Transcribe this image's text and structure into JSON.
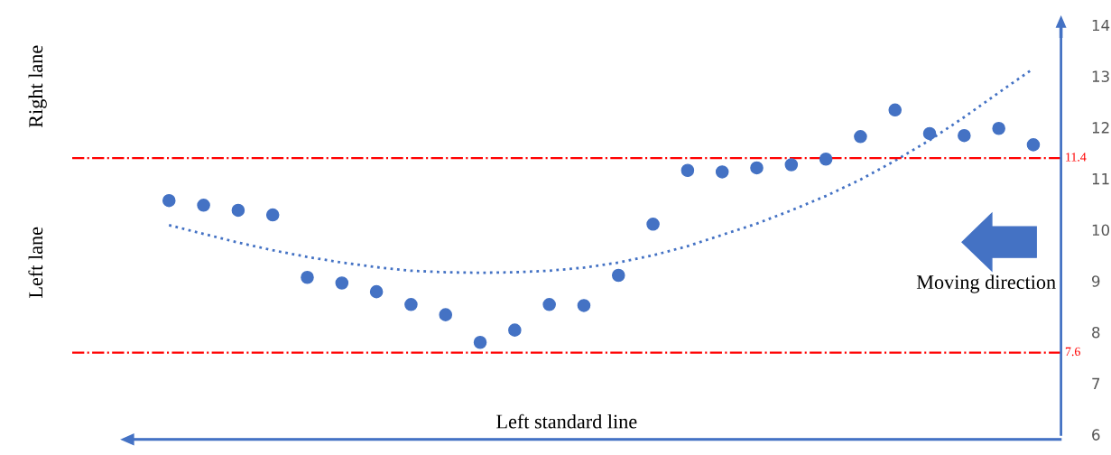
{
  "chart_data": {
    "type": "scatter",
    "categories": [
      null,
      null,
      null,
      null,
      null,
      null,
      null,
      null,
      null,
      null,
      null,
      null,
      null,
      null,
      null,
      null,
      null,
      null,
      null,
      null,
      null,
      null,
      null,
      null,
      null,
      null
    ],
    "series": [
      {
        "color": "#4472c4",
        "marker": "circle",
        "values": [
          10.57,
          10.48,
          10.38,
          10.29,
          9.07,
          8.96,
          8.79,
          8.54,
          8.34,
          7.8,
          8.04,
          8.54,
          8.52,
          9.11,
          10.11,
          11.16,
          11.13,
          11.21,
          11.27,
          11.38,
          11.82,
          12.34,
          11.88,
          11.84,
          11.98,
          11.66
        ]
      },
      {
        "type": "line",
        "color": "#4472c4",
        "line_style": "dotted",
        "marker": "none",
        "values": [
          10.09,
          9.92,
          9.75,
          9.6,
          9.47,
          9.36,
          9.27,
          9.2,
          9.17,
          9.16,
          9.17,
          9.2,
          9.26,
          9.36,
          9.5,
          9.68,
          9.9,
          10.12,
          10.38,
          10.66,
          10.98,
          11.35,
          11.75,
          12.2,
          12.68,
          13.15
        ]
      }
    ],
    "ylim": [
      6,
      14
    ],
    "yticks": [
      6,
      7,
      8,
      9,
      10,
      11,
      12,
      13,
      14
    ],
    "tick_labels": "y",
    "grid": false,
    "ref_lines": [
      {
        "axis": "y",
        "value": 11.4,
        "label": "11.4",
        "color": "#ff0000",
        "line_style": "dashdot"
      },
      {
        "axis": "y",
        "value": 7.6,
        "label": "7.6",
        "color": "#ff0000",
        "line_style": "dashdot"
      }
    ],
    "annotations": [
      "Right lane",
      "Left lane",
      "Moving direction",
      "Left standard line"
    ]
  }
}
